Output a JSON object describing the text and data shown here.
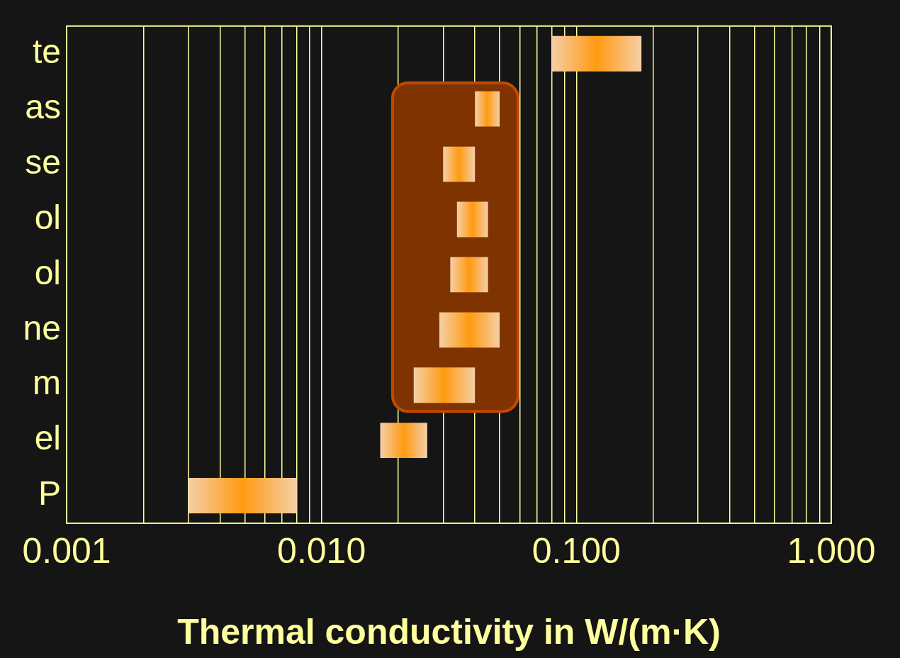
{
  "chart_data": {
    "type": "bar",
    "orientation": "horizontal",
    "log": "x",
    "xlabel": "Thermal conductivity in W/(m·K)",
    "categories": [
      "te",
      "as",
      "se",
      "ol",
      "ol",
      "ne",
      "m",
      "el",
      "P"
    ],
    "base": [
      0.08,
      0.04,
      0.03,
      0.034,
      0.032,
      0.029,
      0.023,
      0.017,
      0.003
    ],
    "values": [
      0.1,
      0.01,
      0.01,
      0.011,
      0.013,
      0.021,
      0.017,
      0.009,
      0.005
    ],
    "color": "#ff9a10",
    "xlim": [
      0.001,
      1
    ],
    "xticks": [
      {
        "value": 0.001,
        "label": "0.001"
      },
      {
        "value": 0.002,
        "label": null
      },
      {
        "value": 0.003,
        "label": null
      },
      {
        "value": 0.004,
        "label": null
      },
      {
        "value": 0.005,
        "label": null
      },
      {
        "value": 0.006,
        "label": null
      },
      {
        "value": 0.007,
        "label": null
      },
      {
        "value": 0.008,
        "label": null
      },
      {
        "value": 0.009,
        "label": null
      },
      {
        "value": 0.01,
        "label": "0.010"
      },
      {
        "value": 0.02,
        "label": null
      },
      {
        "value": 0.03,
        "label": null
      },
      {
        "value": 0.04,
        "label": null
      },
      {
        "value": 0.05,
        "label": null
      },
      {
        "value": 0.06,
        "label": null
      },
      {
        "value": 0.07,
        "label": null
      },
      {
        "value": 0.08,
        "label": null
      },
      {
        "value": 0.09,
        "label": null
      },
      {
        "value": 0.1,
        "label": "0.100"
      },
      {
        "value": 0.2,
        "label": null
      },
      {
        "value": 0.3,
        "label": null
      },
      {
        "value": 0.4,
        "label": null
      },
      {
        "value": 0.5,
        "label": null
      },
      {
        "value": 0.6,
        "label": null
      },
      {
        "value": 0.7,
        "label": null
      },
      {
        "value": 0.8,
        "label": null
      },
      {
        "value": 0.9,
        "label": null
      },
      {
        "value": 1,
        "label": "1.000"
      }
    ],
    "grid": "x",
    "bands": [
      {
        "axis": "x",
        "from": 0.019,
        "to": 0.059,
        "color": "#7f3300"
      }
    ],
    "legend": false
  }
}
